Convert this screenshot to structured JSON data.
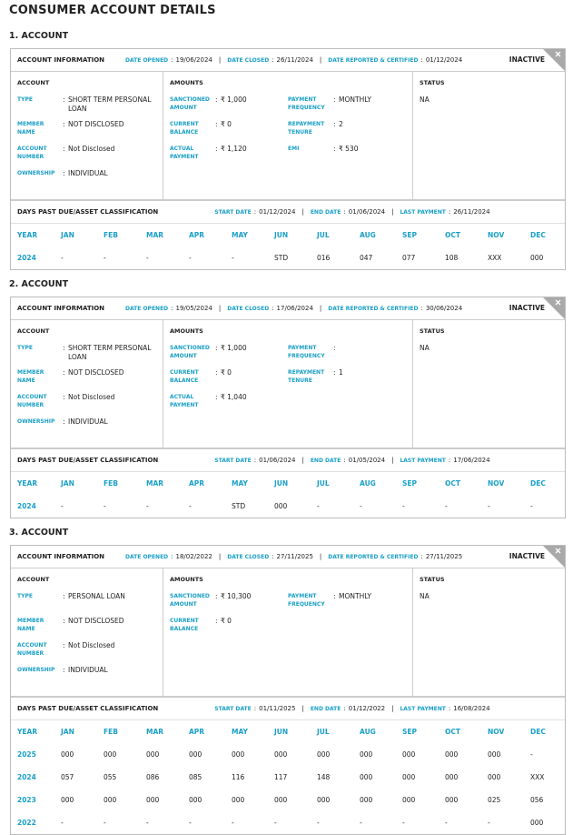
{
  "title": "CONSUMER ACCOUNT DETAILS",
  "separators": {
    "colon": ":",
    "bar": "|"
  },
  "labels": {
    "account_information": "ACCOUNT INFORMATION",
    "date_opened": "DATE OPENED",
    "date_closed": "DATE CLOSED",
    "date_reported": "DATE REPORTED & CERTIFIED",
    "account": "ACCOUNT",
    "amounts": "AMOUNTS",
    "status": "STATUS",
    "dpd": "DAYS PAST DUE/ASSET CLASSIFICATION",
    "start_date": "START DATE",
    "end_date": "END DATE",
    "last_payment": "LAST PAYMENT"
  },
  "month_header": [
    "YEAR",
    "JAN",
    "FEB",
    "MAR",
    "APR",
    "MAY",
    "JUN",
    "JUL",
    "AUG",
    "SEP",
    "OCT",
    "NOV",
    "DEC"
  ],
  "accounts": [
    {
      "heading": "1. ACCOUNT",
      "date_opened": "19/06/2024",
      "date_closed": "26/11/2024",
      "date_reported": "01/12/2024",
      "badge": "INACTIVE",
      "account_fields": [
        {
          "label": "TYPE",
          "value": "SHORT TERM PERSONAL LOAN"
        },
        {
          "label": "MEMBER NAME",
          "value": "NOT DISCLOSED"
        },
        {
          "label": "ACCOUNT NUMBER",
          "value": "Not Disclosed"
        },
        {
          "label": "OWNERSHIP",
          "value": "INDIVIDUAL"
        }
      ],
      "amounts_left": [
        {
          "label": "SANCTIONED AMOUNT",
          "value": "₹ 1,000"
        },
        {
          "label": "CURRENT BALANCE",
          "value": "₹ 0"
        },
        {
          "label": "ACTUAL PAYMENT",
          "value": "₹ 1,120"
        }
      ],
      "amounts_right": [
        {
          "label": "PAYMENT FREQUENCY",
          "value": "MONTHLY"
        },
        {
          "label": "REPAYMENT TENURE",
          "value": "2"
        },
        {
          "label": "EMI",
          "value": "₹ 530"
        }
      ],
      "status": "NA",
      "start_date": "01/12/2024",
      "end_date": "01/06/2024",
      "last_payment": "26/11/2024",
      "rows": [
        [
          "2024",
          "-",
          "-",
          "-",
          "-",
          "-",
          "STD",
          "016",
          "047",
          "077",
          "108",
          "XXX",
          "000"
        ]
      ]
    },
    {
      "heading": "2. ACCOUNT",
      "date_opened": "19/05/2024",
      "date_closed": "17/06/2024",
      "date_reported": "30/06/2024",
      "badge": "INACTIVE",
      "account_fields": [
        {
          "label": "TYPE",
          "value": "SHORT TERM PERSONAL LOAN"
        },
        {
          "label": "MEMBER NAME",
          "value": "NOT DISCLOSED"
        },
        {
          "label": "ACCOUNT NUMBER",
          "value": "Not Disclosed"
        },
        {
          "label": "OWNERSHIP",
          "value": "INDIVIDUAL"
        }
      ],
      "amounts_left": [
        {
          "label": "SANCTIONED AMOUNT",
          "value": "₹ 1,000"
        },
        {
          "label": "CURRENT BALANCE",
          "value": "₹ 0"
        },
        {
          "label": "ACTUAL PAYMENT",
          "value": "₹ 1,040"
        }
      ],
      "amounts_right": [
        {
          "label": "PAYMENT FREQUENCY"
        },
        {
          "label": "REPAYMENT TENURE",
          "value": "1"
        }
      ],
      "status": "NA",
      "start_date": "01/06/2024",
      "end_date": "01/05/2024",
      "last_payment": "17/06/2024",
      "rows": [
        [
          "2024",
          "-",
          "-",
          "-",
          "-",
          "STD",
          "000",
          "-",
          "-",
          "-",
          "-",
          "-",
          "-"
        ]
      ]
    },
    {
      "heading": "3. ACCOUNT",
      "date_opened": "18/02/2022",
      "date_closed": "27/11/2025",
      "date_reported": "27/11/2025",
      "badge": "INACTIVE",
      "account_fields": [
        {
          "label": "TYPE",
          "value": "PERSONAL LOAN"
        },
        {
          "label": "MEMBER NAME",
          "value": "NOT DISCLOSED"
        },
        {
          "label": "ACCOUNT NUMBER",
          "value": "Not Disclosed"
        },
        {
          "label": "OWNERSHIP",
          "value": "INDIVIDUAL"
        }
      ],
      "amounts_left": [
        {
          "label": "SANCTIONED AMOUNT",
          "value": "₹ 10,300"
        },
        {
          "label": "CURRENT BALANCE",
          "value": "₹ 0"
        }
      ],
      "amounts_right": [
        {
          "label": "PAYMENT FREQUENCY",
          "value": "MONTHLY"
        }
      ],
      "status": "NA",
      "start_date": "01/11/2025",
      "end_date": "01/12/2022",
      "last_payment": "16/08/2024",
      "rows": [
        [
          "2025",
          "000",
          "000",
          "000",
          "000",
          "000",
          "000",
          "000",
          "000",
          "000",
          "000",
          "000",
          "-"
        ],
        [
          "2024",
          "057",
          "055",
          "086",
          "085",
          "116",
          "117",
          "148",
          "000",
          "000",
          "000",
          "000",
          "XXX"
        ],
        [
          "2023",
          "000",
          "000",
          "000",
          "000",
          "000",
          "000",
          "000",
          "000",
          "000",
          "000",
          "025",
          "056"
        ],
        [
          "2022",
          "-",
          "-",
          "-",
          "-",
          "-",
          "-",
          "-",
          "-",
          "-",
          "-",
          "-",
          "000"
        ]
      ]
    }
  ]
}
